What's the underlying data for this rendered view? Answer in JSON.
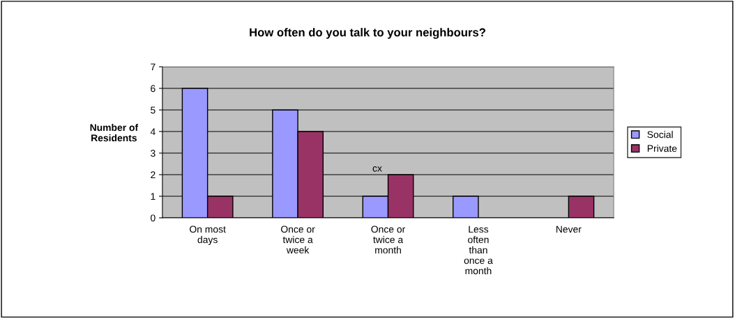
{
  "chart_data": {
    "type": "bar",
    "title": "How often do you talk to your neighbours?",
    "ylabel": "Number of Residents",
    "categories": [
      "On most days",
      "Once or twice a week",
      "Once or twice a month",
      "Less often than once a month",
      "Never"
    ],
    "series": [
      {
        "name": "Social",
        "color": "#9999ff",
        "values": [
          6,
          5,
          1,
          1,
          null
        ]
      },
      {
        "name": "Private",
        "color": "#993366",
        "values": [
          1,
          4,
          2,
          null,
          1
        ]
      }
    ],
    "ylim": [
      0,
      7
    ],
    "yticks": [
      0,
      1,
      2,
      3,
      4,
      5,
      6,
      7
    ],
    "grid": "y",
    "legend": "right",
    "annotations": [
      {
        "text": "cx",
        "x": "Once or twice a month",
        "y": 2
      }
    ]
  }
}
